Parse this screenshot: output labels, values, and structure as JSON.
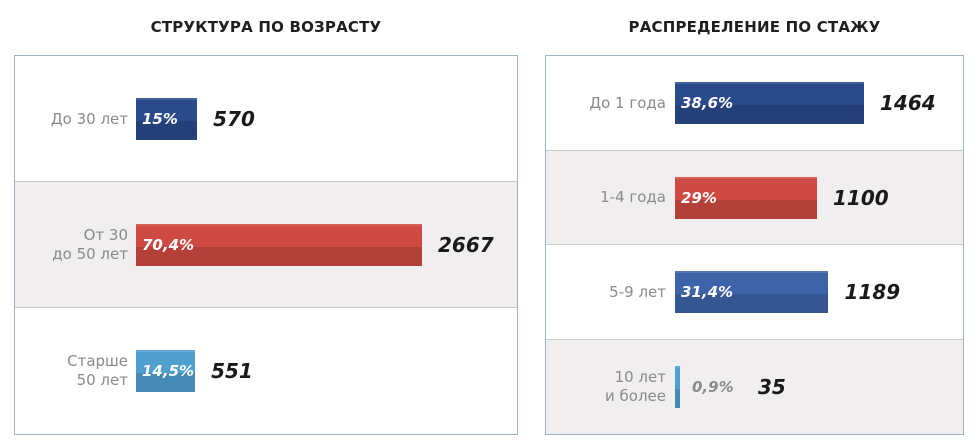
{
  "chart_data": [
    {
      "type": "bar",
      "orientation": "horizontal",
      "title": "СТРУКТУРА ПО ВОЗРАСТУ",
      "categories": [
        [
          "До 30 лет"
        ],
        [
          "От 30",
          "до 50 лет"
        ],
        [
          "Старше",
          "50 лет"
        ]
      ],
      "values": [
        570,
        2667,
        551
      ],
      "percent_labels": [
        "15%",
        "70,4%",
        "14,5%"
      ],
      "colors": [
        "#2b4a8c",
        "#cf4a43",
        "#4f9fcf"
      ],
      "xlim": [
        0,
        2667
      ]
    },
    {
      "type": "bar",
      "orientation": "horizontal",
      "title": "РАСПРЕДЕЛЕНИЕ ПО СТАЖУ",
      "categories": [
        [
          "До 1 года"
        ],
        [
          "1-4 года"
        ],
        [
          "5-9 лет"
        ],
        [
          "10 лет",
          "и более"
        ]
      ],
      "values": [
        1464,
        1100,
        1189,
        35
      ],
      "percent_labels": [
        "38,6%",
        "29%",
        "31,4%",
        "0,9%"
      ],
      "colors": [
        "#2b4a8c",
        "#cf4a43",
        "#3f63a8",
        "#4f9fcf"
      ],
      "xlim": [
        0,
        1464
      ]
    }
  ]
}
